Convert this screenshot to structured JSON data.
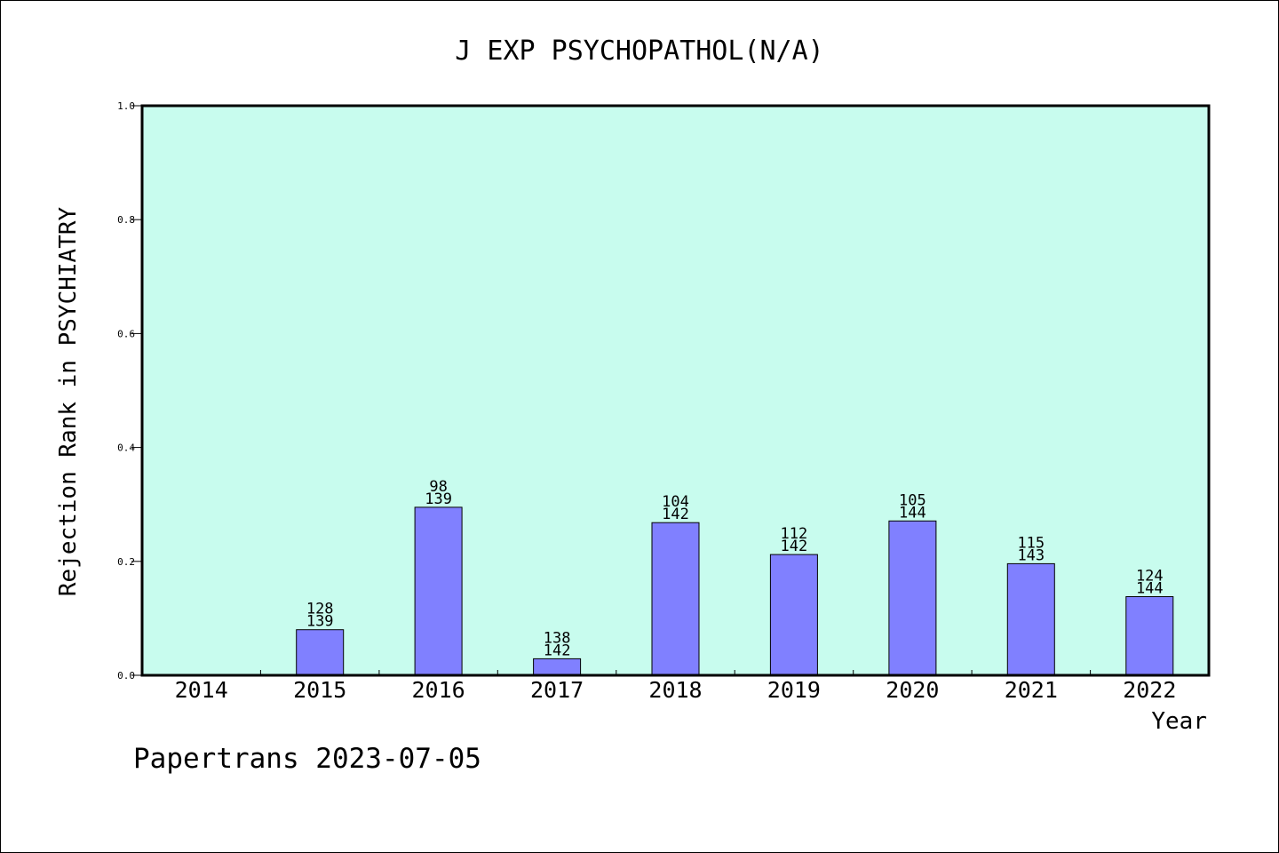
{
  "chart_data": {
    "type": "bar",
    "title": "J EXP PSYCHOPATHOL(N/A)",
    "xlabel": "Year",
    "ylabel": "Rejection Rank in PSYCHIATRY",
    "ylim": [
      0,
      1.0
    ],
    "yticks": [
      "0.0",
      "0.2",
      "0.4",
      "0.6",
      "0.8",
      "1.0"
    ],
    "categories": [
      "2014",
      "2015",
      "2016",
      "2017",
      "2018",
      "2019",
      "2020",
      "2021",
      "2022"
    ],
    "values": [
      null,
      0.08,
      0.295,
      0.029,
      0.268,
      0.212,
      0.271,
      0.196,
      0.138
    ],
    "rank_labels": [
      null,
      [
        "128",
        "139"
      ],
      [
        "98",
        "139"
      ],
      [
        "138",
        "142"
      ],
      [
        "104",
        "142"
      ],
      [
        "112",
        "142"
      ],
      [
        "105",
        "144"
      ],
      [
        "115",
        "143"
      ],
      [
        "124",
        "144"
      ]
    ],
    "grid": false,
    "colors": {
      "plot_background": "#c8fcee",
      "bar_fill": "#8080ff",
      "bar_stroke": "#000000"
    }
  },
  "footer": {
    "text": "Papertrans 2023-07-05"
  }
}
